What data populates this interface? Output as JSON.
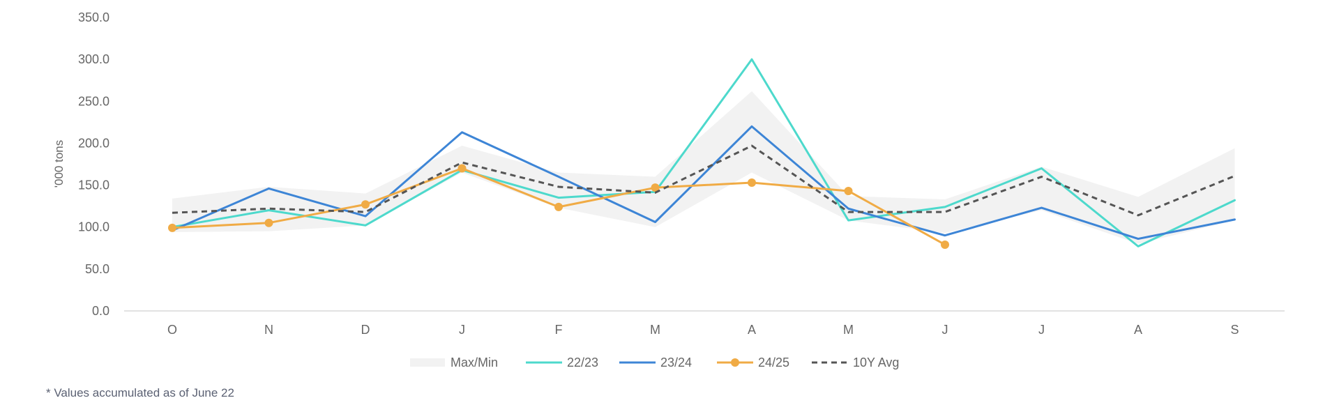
{
  "chart_data": {
    "type": "line",
    "title": "",
    "xlabel": "",
    "ylabel": "'000 tons",
    "ylim": [
      0,
      350
    ],
    "yticks": [
      "0.0",
      "50.0",
      "100.0",
      "150.0",
      "200.0",
      "250.0",
      "300.0",
      "350.0"
    ],
    "categories": [
      "O",
      "N",
      "D",
      "J",
      "F",
      "M",
      "A",
      "M",
      "J",
      "J",
      "A",
      "S"
    ],
    "band": {
      "name": "Max/Min",
      "color": "#f2f2f2",
      "max": [
        134,
        148,
        140,
        197,
        165,
        160,
        262,
        137,
        133,
        172,
        136,
        194
      ],
      "min": [
        94,
        95,
        102,
        165,
        123,
        100,
        165,
        108,
        93,
        120,
        80,
        108
      ]
    },
    "series": [
      {
        "name": "22/23",
        "color": "#4dd9cc",
        "style": "solid",
        "markers": false,
        "values": [
          100,
          120,
          102,
          168,
          135,
          142,
          300,
          108,
          124,
          170,
          77,
          132
        ]
      },
      {
        "name": "23/24",
        "color": "#3d85d6",
        "style": "solid",
        "markers": false,
        "values": [
          96,
          146,
          113,
          213,
          160,
          106,
          220,
          122,
          90,
          123,
          86,
          109
        ]
      },
      {
        "name": "24/25",
        "color": "#f0ab45",
        "style": "solid",
        "markers": true,
        "values": [
          99,
          105,
          127,
          170,
          124,
          147,
          153,
          143,
          79,
          null,
          null,
          null
        ]
      },
      {
        "name": "10Y Avg",
        "color": "#555555",
        "style": "dashed",
        "markers": false,
        "values": [
          117,
          122,
          118,
          177,
          148,
          141,
          197,
          118,
          118,
          160,
          114,
          161
        ]
      }
    ],
    "grid": false,
    "legend_position": "bottom-center"
  },
  "footnote": "* Values accumulated as of June 22"
}
